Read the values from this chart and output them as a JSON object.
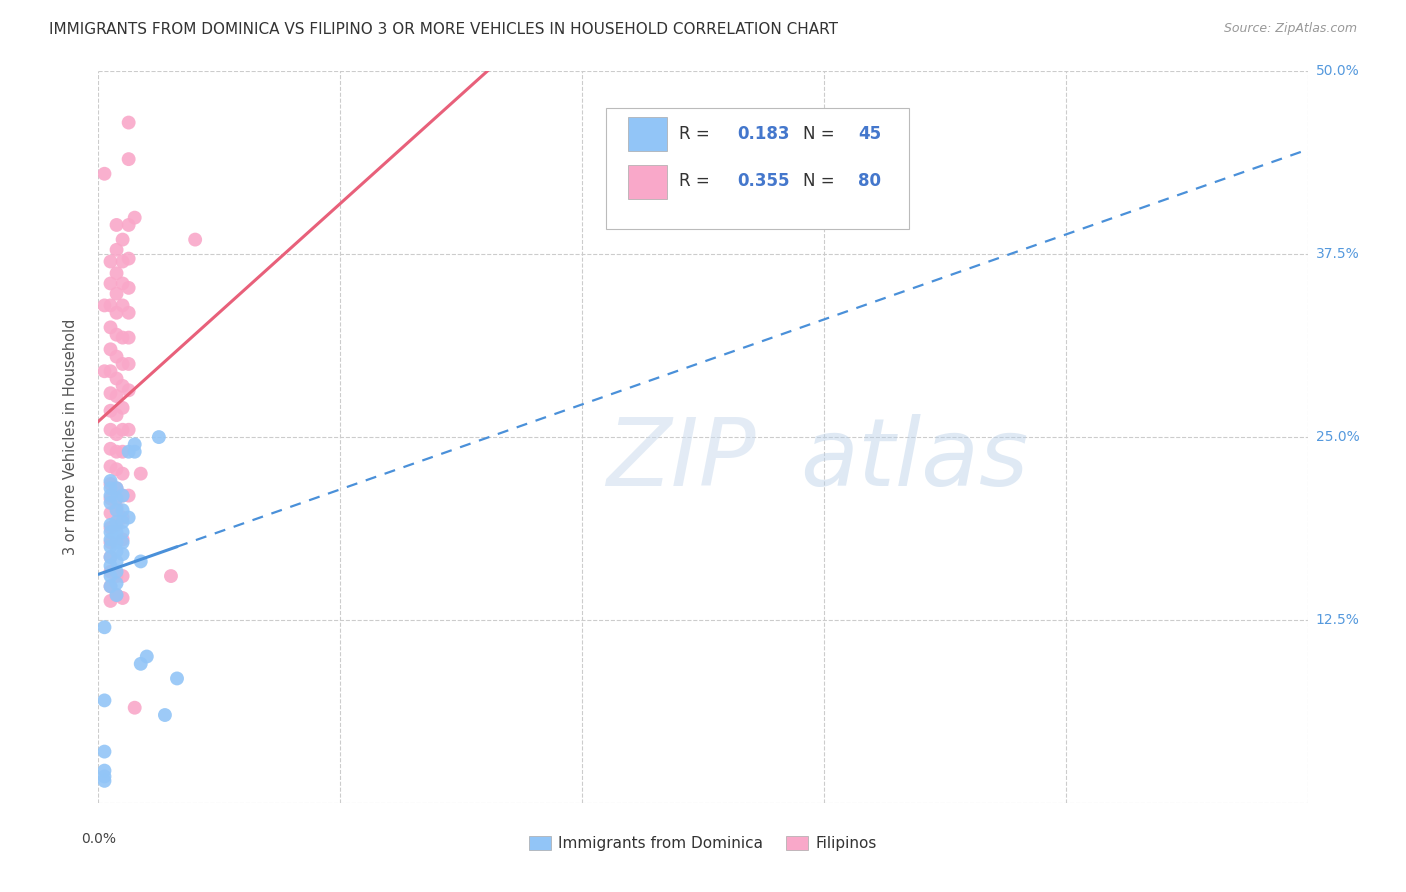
{
  "title": "IMMIGRANTS FROM DOMINICA VS FILIPINO 3 OR MORE VEHICLES IN HOUSEHOLD CORRELATION CHART",
  "source": "Source: ZipAtlas.com",
  "ylabel": "3 or more Vehicles in Household",
  "watermark": "ZIPatlas",
  "xlim": [
    0.0,
    0.2
  ],
  "ylim": [
    0.0,
    0.5
  ],
  "xticks": [
    0.0,
    0.04,
    0.08,
    0.12,
    0.16,
    0.2
  ],
  "yticks": [
    0.0,
    0.125,
    0.25,
    0.375,
    0.5
  ],
  "ytick_labels": [
    "",
    "12.5%",
    "25.0%",
    "37.5%",
    "50.0%"
  ],
  "dominica_color": "#92C5F7",
  "filipino_color": "#F9A8C9",
  "dominica_line_color": "#4A90D9",
  "filipino_line_color": "#E8607A",
  "background_color": "#ffffff",
  "grid_color": "#cccccc",
  "dominica_points": [
    [
      0.001,
      0.035
    ],
    [
      0.001,
      0.022
    ],
    [
      0.001,
      0.018
    ],
    [
      0.001,
      0.015
    ],
    [
      0.001,
      0.12
    ],
    [
      0.001,
      0.07
    ],
    [
      0.002,
      0.19
    ],
    [
      0.002,
      0.185
    ],
    [
      0.002,
      0.18
    ],
    [
      0.002,
      0.175
    ],
    [
      0.002,
      0.168
    ],
    [
      0.002,
      0.162
    ],
    [
      0.002,
      0.155
    ],
    [
      0.002,
      0.148
    ],
    [
      0.002,
      0.22
    ],
    [
      0.002,
      0.215
    ],
    [
      0.002,
      0.21
    ],
    [
      0.002,
      0.205
    ],
    [
      0.003,
      0.215
    ],
    [
      0.003,
      0.208
    ],
    [
      0.003,
      0.2
    ],
    [
      0.003,
      0.192
    ],
    [
      0.003,
      0.185
    ],
    [
      0.003,
      0.178
    ],
    [
      0.003,
      0.172
    ],
    [
      0.003,
      0.165
    ],
    [
      0.003,
      0.158
    ],
    [
      0.003,
      0.15
    ],
    [
      0.003,
      0.142
    ],
    [
      0.004,
      0.21
    ],
    [
      0.004,
      0.2
    ],
    [
      0.004,
      0.192
    ],
    [
      0.004,
      0.185
    ],
    [
      0.004,
      0.178
    ],
    [
      0.004,
      0.17
    ],
    [
      0.005,
      0.24
    ],
    [
      0.005,
      0.195
    ],
    [
      0.006,
      0.245
    ],
    [
      0.006,
      0.24
    ],
    [
      0.007,
      0.165
    ],
    [
      0.007,
      0.095
    ],
    [
      0.008,
      0.1
    ],
    [
      0.01,
      0.25
    ],
    [
      0.011,
      0.06
    ],
    [
      0.013,
      0.085
    ]
  ],
  "filipino_points": [
    [
      0.001,
      0.43
    ],
    [
      0.001,
      0.34
    ],
    [
      0.001,
      0.295
    ],
    [
      0.002,
      0.37
    ],
    [
      0.002,
      0.355
    ],
    [
      0.002,
      0.34
    ],
    [
      0.002,
      0.325
    ],
    [
      0.002,
      0.31
    ],
    [
      0.002,
      0.295
    ],
    [
      0.002,
      0.28
    ],
    [
      0.002,
      0.268
    ],
    [
      0.002,
      0.255
    ],
    [
      0.002,
      0.242
    ],
    [
      0.002,
      0.23
    ],
    [
      0.002,
      0.218
    ],
    [
      0.002,
      0.208
    ],
    [
      0.002,
      0.198
    ],
    [
      0.002,
      0.188
    ],
    [
      0.002,
      0.178
    ],
    [
      0.002,
      0.168
    ],
    [
      0.002,
      0.158
    ],
    [
      0.002,
      0.148
    ],
    [
      0.002,
      0.138
    ],
    [
      0.003,
      0.395
    ],
    [
      0.003,
      0.378
    ],
    [
      0.003,
      0.362
    ],
    [
      0.003,
      0.348
    ],
    [
      0.003,
      0.335
    ],
    [
      0.003,
      0.32
    ],
    [
      0.003,
      0.305
    ],
    [
      0.003,
      0.29
    ],
    [
      0.003,
      0.278
    ],
    [
      0.003,
      0.265
    ],
    [
      0.003,
      0.252
    ],
    [
      0.003,
      0.24
    ],
    [
      0.003,
      0.228
    ],
    [
      0.003,
      0.215
    ],
    [
      0.003,
      0.202
    ],
    [
      0.003,
      0.19
    ],
    [
      0.003,
      0.155
    ],
    [
      0.003,
      0.142
    ],
    [
      0.004,
      0.385
    ],
    [
      0.004,
      0.37
    ],
    [
      0.004,
      0.355
    ],
    [
      0.004,
      0.34
    ],
    [
      0.004,
      0.318
    ],
    [
      0.004,
      0.3
    ],
    [
      0.004,
      0.285
    ],
    [
      0.004,
      0.27
    ],
    [
      0.004,
      0.255
    ],
    [
      0.004,
      0.24
    ],
    [
      0.004,
      0.225
    ],
    [
      0.004,
      0.21
    ],
    [
      0.004,
      0.195
    ],
    [
      0.004,
      0.18
    ],
    [
      0.004,
      0.155
    ],
    [
      0.004,
      0.14
    ],
    [
      0.005,
      0.465
    ],
    [
      0.005,
      0.44
    ],
    [
      0.005,
      0.395
    ],
    [
      0.005,
      0.372
    ],
    [
      0.005,
      0.352
    ],
    [
      0.005,
      0.335
    ],
    [
      0.005,
      0.318
    ],
    [
      0.005,
      0.3
    ],
    [
      0.005,
      0.282
    ],
    [
      0.005,
      0.255
    ],
    [
      0.005,
      0.21
    ],
    [
      0.006,
      0.4
    ],
    [
      0.006,
      0.065
    ],
    [
      0.007,
      0.225
    ],
    [
      0.012,
      0.155
    ],
    [
      0.016,
      0.385
    ]
  ]
}
